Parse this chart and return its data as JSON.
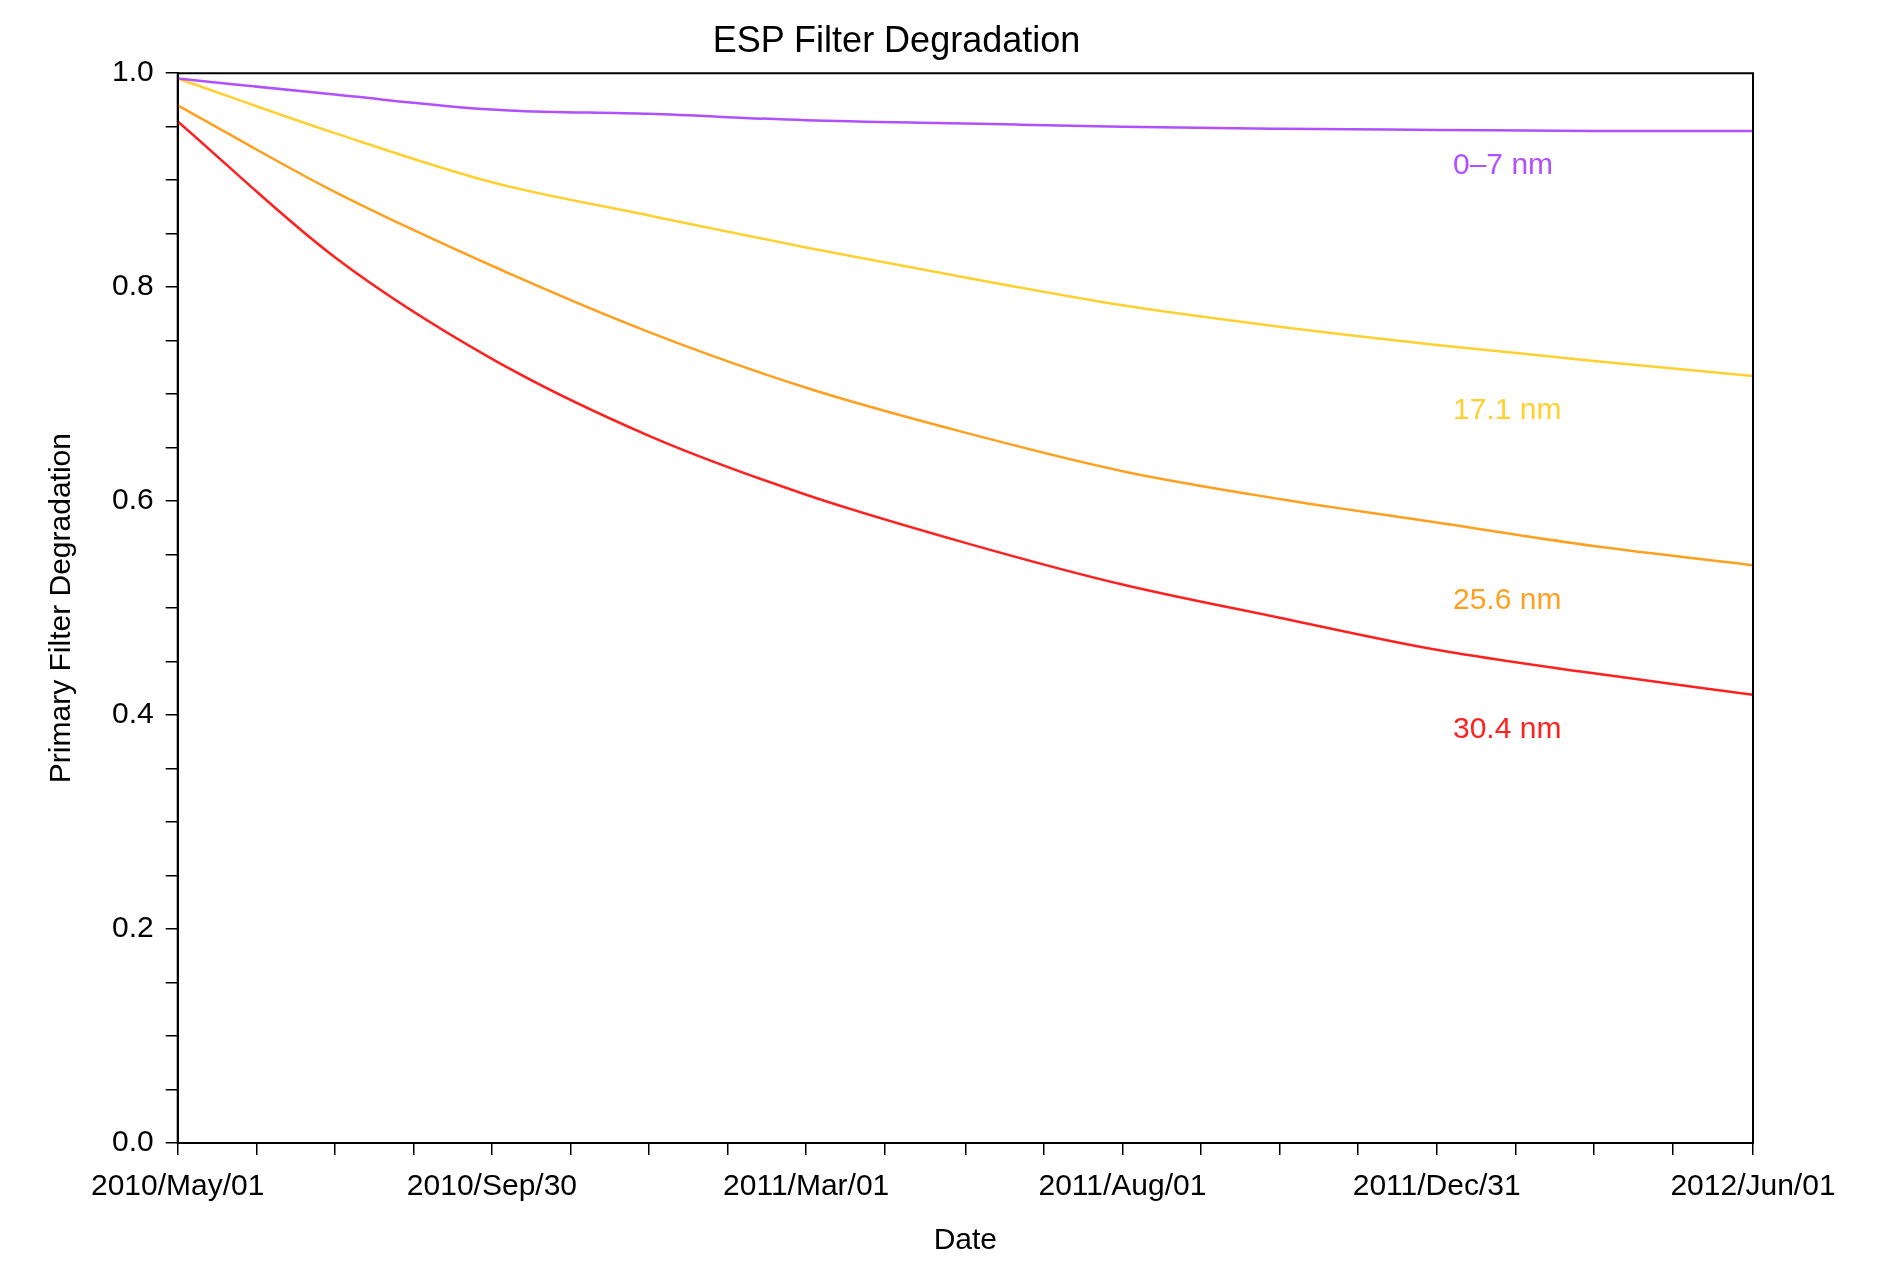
{
  "chart_data": {
    "type": "line",
    "title": "ESP Filter Degradation",
    "xlabel": "Date",
    "ylabel": "Primary Filter Degradation",
    "x": [
      "2010-05-01",
      "2010-07-16",
      "2010-09-30",
      "2010-12-15",
      "2011-03-01",
      "2011-05-17",
      "2011-08-01",
      "2011-10-16",
      "2011-12-31",
      "2012-03-16",
      "2012-06-01"
    ],
    "series": [
      {
        "name": "0–7 nm",
        "color": "#b050ff",
        "values": [
          0.995,
          0.98,
          0.966,
          0.962,
          0.956,
          0.953,
          0.95,
          0.948,
          0.947,
          0.946,
          0.946
        ]
      },
      {
        "name": "17.1 nm",
        "color": "#ffd030",
        "values": [
          0.995,
          0.944,
          0.898,
          0.867,
          0.837,
          0.809,
          0.783,
          0.763,
          0.746,
          0.731,
          0.717
        ]
      },
      {
        "name": "25.6 nm",
        "color": "#ffa020",
        "values": [
          0.97,
          0.889,
          0.82,
          0.758,
          0.706,
          0.664,
          0.628,
          0.602,
          0.58,
          0.558,
          0.54
        ]
      },
      {
        "name": "30.4 nm",
        "color": "#ff2020",
        "values": [
          0.955,
          0.828,
          0.733,
          0.661,
          0.606,
          0.561,
          0.522,
          0.491,
          0.461,
          0.439,
          0.419
        ]
      }
    ],
    "xlim": [
      "2010-05-01",
      "2012-06-01"
    ],
    "xticks": [
      {
        "value": "2010-05-01",
        "label": "2010/May/01"
      },
      {
        "value": "2010-06-08",
        "label": null
      },
      {
        "value": "2010-07-16",
        "label": null
      },
      {
        "value": "2010-08-23",
        "label": null
      },
      {
        "value": "2010-09-30",
        "label": "2010/Sep/30"
      },
      {
        "value": "2010-11-07",
        "label": null
      },
      {
        "value": "2010-12-15",
        "label": null
      },
      {
        "value": "2011-01-22",
        "label": null
      },
      {
        "value": "2011-03-01",
        "label": "2011/Mar/01"
      },
      {
        "value": "2011-04-08",
        "label": null
      },
      {
        "value": "2011-05-17",
        "label": null
      },
      {
        "value": "2011-06-24",
        "label": null
      },
      {
        "value": "2011-08-01",
        "label": "2011/Aug/01"
      },
      {
        "value": "2011-09-08",
        "label": null
      },
      {
        "value": "2011-10-16",
        "label": null
      },
      {
        "value": "2011-11-23",
        "label": null
      },
      {
        "value": "2011-12-31",
        "label": "2011/Dec/31"
      },
      {
        "value": "2012-02-07",
        "label": null
      },
      {
        "value": "2012-03-16",
        "label": null
      },
      {
        "value": "2012-04-23",
        "label": null
      },
      {
        "value": "2012-06-01",
        "label": "2012/Jun/01"
      }
    ],
    "ylim": [
      0,
      1
    ],
    "yticks": [
      {
        "value": 0,
        "label": "0.0"
      },
      {
        "value": 0.05,
        "label": null
      },
      {
        "value": 0.1,
        "label": null
      },
      {
        "value": 0.15,
        "label": null
      },
      {
        "value": 0.2,
        "label": "0.2"
      },
      {
        "value": 0.25,
        "label": null
      },
      {
        "value": 0.3,
        "label": null
      },
      {
        "value": 0.35,
        "label": null
      },
      {
        "value": 0.4,
        "label": "0.4"
      },
      {
        "value": 0.45,
        "label": null
      },
      {
        "value": 0.5,
        "label": null
      },
      {
        "value": 0.55,
        "label": null
      },
      {
        "value": 0.6,
        "label": "0.6"
      },
      {
        "value": 0.65,
        "label": null
      },
      {
        "value": 0.7,
        "label": null
      },
      {
        "value": 0.75,
        "label": null
      },
      {
        "value": 0.8,
        "label": "0.8"
      },
      {
        "value": 0.85,
        "label": null
      },
      {
        "value": 0.9,
        "label": null
      },
      {
        "value": 0.95,
        "label": null
      },
      {
        "value": 1,
        "label": "1.0"
      }
    ],
    "grid": false,
    "legend": false,
    "marker": "none",
    "line_style": "solid"
  }
}
